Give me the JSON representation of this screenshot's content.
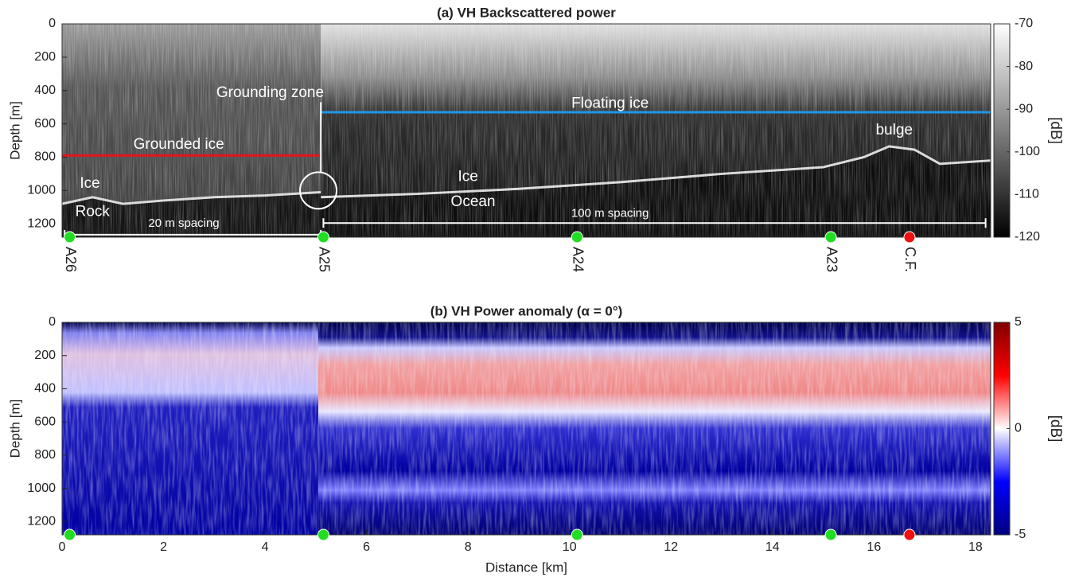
{
  "chart_data": [
    {
      "type": "heatmap",
      "title": "(a) VH Backscattered power",
      "ylabel": "Depth [m]",
      "xlim": [
        0,
        18.3
      ],
      "ylim": [
        0,
        1280
      ],
      "yticks": [
        0,
        200,
        400,
        600,
        800,
        1000,
        1200
      ],
      "colorbar": {
        "label": "[dB]",
        "lim": [
          -120,
          -70
        ],
        "ticks": [
          -70,
          -80,
          -90,
          -100,
          -110,
          -120
        ],
        "colors": [
          "#ffffff",
          "#000000"
        ]
      },
      "lines": [
        {
          "color": "#e3141e",
          "x": [
            0,
            5.1
          ],
          "y": [
            790,
            790
          ]
        },
        {
          "color": "#1e96e6",
          "x": [
            5.1,
            18.3
          ],
          "y": [
            530,
            530
          ]
        }
      ],
      "annotations": [
        {
          "text": "Grounding zone",
          "x": 4.1,
          "y": 415
        },
        {
          "text": "Floating ice",
          "x": 10.8,
          "y": 480
        },
        {
          "text": "Grounded ice",
          "x": 2.3,
          "y": 725
        },
        {
          "text": "bulge",
          "x": 16.4,
          "y": 640
        },
        {
          "text": "Ice",
          "x": 0.55,
          "y": 960
        },
        {
          "text": "Rock",
          "x": 0.6,
          "y": 1130
        },
        {
          "text": "Ice",
          "x": 8,
          "y": 920
        },
        {
          "text": "Ocean",
          "x": 8.1,
          "y": 1070
        },
        {
          "text": "20 m spacing",
          "x": 2.4,
          "y": 1200
        },
        {
          "text": "100 m spacing",
          "x": 10.8,
          "y": 1140
        }
      ],
      "stations": {
        "names": [
          "A26",
          "A25",
          "A24",
          "A23",
          "C.F."
        ],
        "x": [
          0.15,
          5.15,
          10.15,
          15.15,
          16.7
        ],
        "colors": [
          "#22dd22",
          "#22dd22",
          "#22dd22",
          "#22dd22",
          "#ee1111"
        ]
      }
    },
    {
      "type": "heatmap",
      "title": "(b) VH Power anomaly (α = 0°)",
      "xlabel": "Distance [km]",
      "ylabel": "Depth [m]",
      "xlim": [
        0,
        18.3
      ],
      "xticks": [
        0,
        2,
        4,
        6,
        8,
        10,
        12,
        14,
        16,
        18
      ],
      "ylim": [
        0,
        1280
      ],
      "yticks": [
        0,
        200,
        400,
        600,
        800,
        1000,
        1200
      ],
      "colorbar": {
        "label": "[dB]",
        "lim": [
          -5,
          5
        ],
        "ticks": [
          5,
          0,
          -5
        ],
        "colors": [
          "#800000",
          "#ff0000",
          "#ffffff",
          "#0000ff",
          "#00007f"
        ]
      },
      "stations": {
        "x": [
          0.15,
          5.15,
          10.15,
          15.15,
          16.7
        ],
        "colors": [
          "#22dd22",
          "#22dd22",
          "#22dd22",
          "#22dd22",
          "#ee1111"
        ]
      }
    }
  ]
}
